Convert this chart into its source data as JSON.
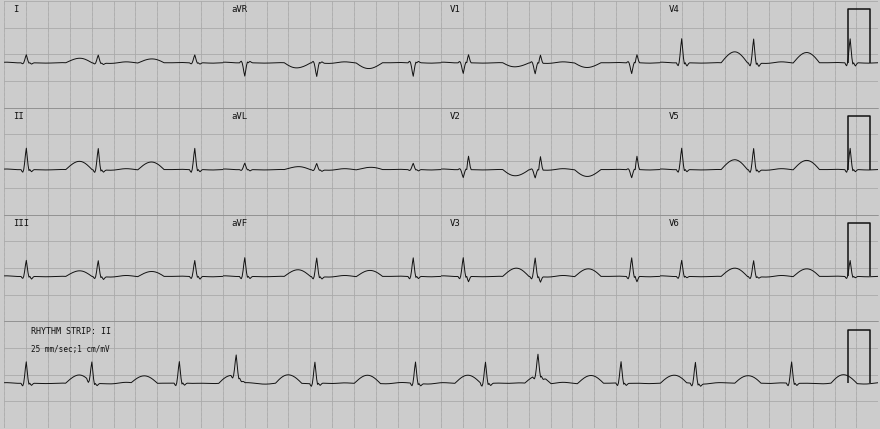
{
  "bg_color": "#cccccc",
  "grid_bg_color": "#e8e8e8",
  "grid_major_color": "#aaaaaa",
  "grid_minor_color": "#cccccc",
  "ecg_color": "#111111",
  "line_width": 0.7,
  "fig_width": 8.8,
  "fig_height": 4.29,
  "dpi": 100,
  "rhythm_label": "RHYTHM STRIP: II",
  "rhythm_sublabel": "25 mm/sec;1 cm/mV",
  "label_fontsize": 6.5,
  "rhythm_fontsize": 6.0,
  "text_color": "#111111",
  "separator_color": "#888888",
  "lead_layout": [
    [
      "I",
      "aVR",
      "V1",
      "V4"
    ],
    [
      "II",
      "aVL",
      "V2",
      "V5"
    ],
    [
      "III",
      "aVF",
      "V3",
      "V6"
    ]
  ]
}
